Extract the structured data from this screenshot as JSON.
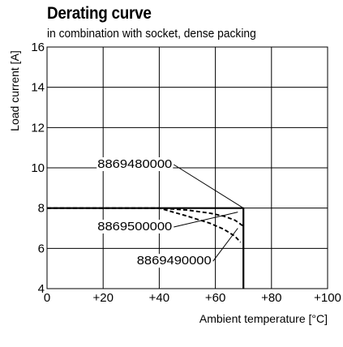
{
  "chart_data": {
    "type": "line",
    "title": "Derating curve",
    "subtitle": "in combination with socket, dense packing",
    "xlabel": "Ambient temperature [°C]",
    "ylabel": "Load current [A]",
    "xlim": [
      0,
      100
    ],
    "ylim": [
      4,
      16
    ],
    "x_ticks": [
      0,
      20,
      40,
      60,
      80,
      100
    ],
    "x_tick_labels": [
      "0",
      "+20",
      "+40",
      "+60",
      "+80",
      "+100"
    ],
    "y_ticks": [
      4,
      6,
      8,
      10,
      12,
      14,
      16
    ],
    "y_tick_labels": [
      "4",
      "6",
      "8",
      "10",
      "12",
      "14",
      "16"
    ],
    "grid": true,
    "series": [
      {
        "name": "8869480000",
        "style": "solid",
        "x": [
          0,
          70,
          70
        ],
        "y": [
          8,
          8,
          4
        ]
      },
      {
        "name": "8869500000",
        "style": "dashed",
        "x": [
          0,
          40,
          50,
          58,
          63,
          67,
          70
        ],
        "y": [
          8,
          8,
          7.9,
          7.75,
          7.6,
          7.4,
          7.1
        ]
      },
      {
        "name": "8869490000",
        "style": "dashed",
        "x": [
          0,
          40,
          50,
          58,
          63,
          67,
          69
        ],
        "y": [
          8,
          8,
          7.6,
          7.25,
          6.95,
          6.6,
          6.3
        ]
      }
    ],
    "annotations": [
      {
        "text": "8869480000",
        "x": 18,
        "y": 10,
        "points_to": [
          70,
          8
        ]
      },
      {
        "text": "8869500000",
        "x": 18,
        "y": 6.9,
        "points_to": [
          68,
          7.8
        ]
      },
      {
        "text": "8869490000",
        "x": 32,
        "y": 5.2,
        "points_to": [
          68,
          7.0
        ]
      }
    ]
  }
}
